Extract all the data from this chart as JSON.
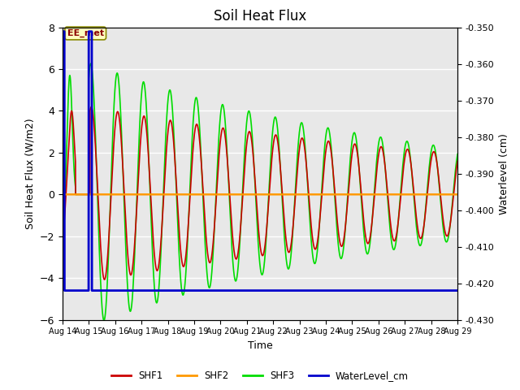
{
  "title": "Soil Heat Flux",
  "xlabel": "Time",
  "ylabel_left": "Soil Heat Flux (W/m2)",
  "ylabel_right": "Waterlevel (cm)",
  "ylim_left": [
    -6,
    8
  ],
  "ylim_right": [
    -0.43,
    -0.35
  ],
  "tick_labels": [
    "Aug 14",
    "Aug 15",
    "Aug 16",
    "Aug 17",
    "Aug 18",
    "Aug 19",
    "Aug 20",
    "Aug 21",
    "Aug 22",
    "Aug 23",
    "Aug 24",
    "Aug 25",
    "Aug 26",
    "Aug 27",
    "Aug 28",
    "Aug 29"
  ],
  "shf1_color": "#cc0000",
  "shf2_color": "#ff9900",
  "shf3_color": "#00dd00",
  "water_color": "#0000cc",
  "annotation_text": "EE_met",
  "background_gray": "#e8e8e8",
  "right_ticks": [
    -0.43,
    -0.42,
    -0.41,
    -0.4,
    -0.39,
    -0.38,
    -0.37,
    -0.36,
    -0.35
  ]
}
